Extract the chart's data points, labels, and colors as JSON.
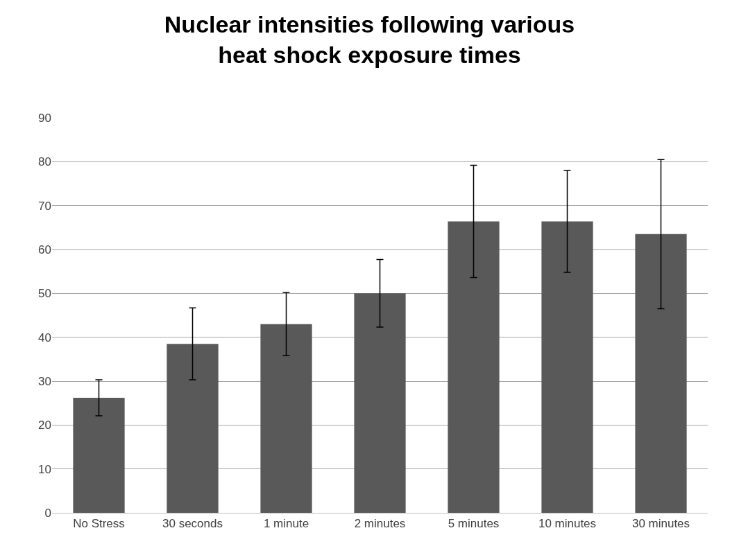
{
  "chart_data": {
    "type": "bar",
    "title": "Nuclear intensities following various heat shock exposure times",
    "categories": [
      "No Stress",
      "30 seconds",
      "1 minute",
      "2 minutes",
      "5 minutes",
      "10 minutes",
      "30 minutes"
    ],
    "values": [
      26.2,
      38.5,
      43,
      50,
      66.4,
      66.4,
      63.5
    ],
    "errors": [
      4.1,
      8.2,
      7.2,
      7.7,
      12.8,
      11.6,
      17
    ],
    "color": "#595959",
    "ylim": [
      0,
      90
    ],
    "yticks": [
      0,
      10,
      20,
      30,
      40,
      50,
      60,
      70,
      80,
      90
    ],
    "grid": "y"
  }
}
